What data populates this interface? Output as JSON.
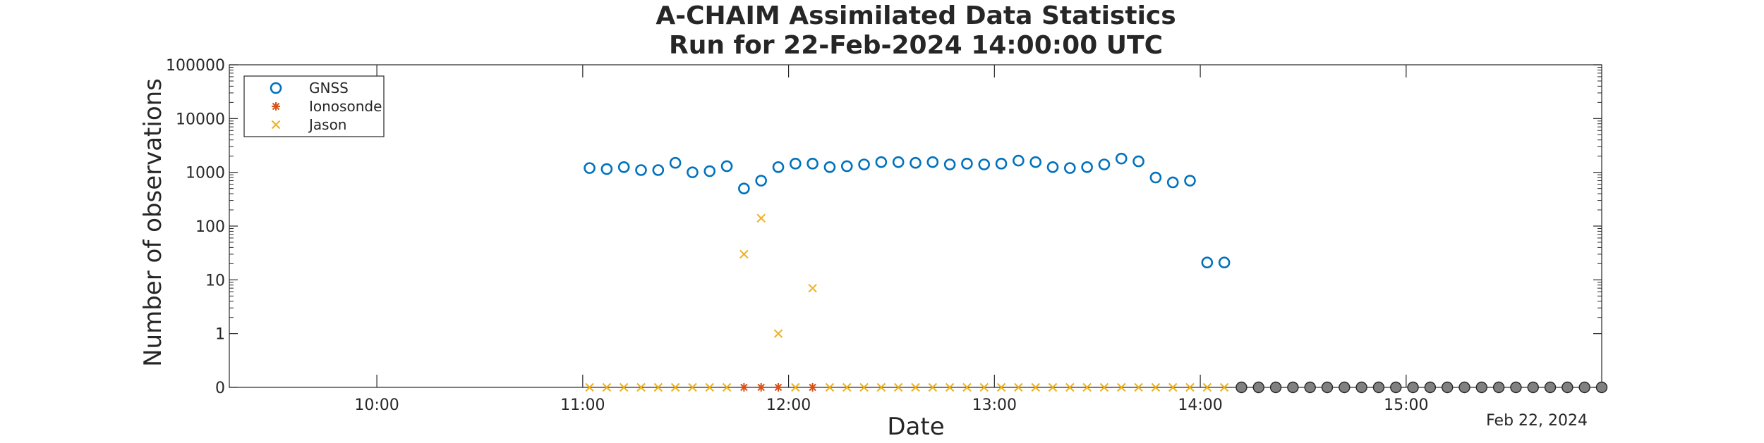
{
  "chart_data": {
    "type": "scatter",
    "title": "A-CHAIM Assimilated Data Statistics",
    "subtitle": "Run for 22-Feb-2024 14:00:00 UTC",
    "xlabel": "Date",
    "ylabel": "Number of observations",
    "date_label": "Feb 22, 2024",
    "x_range": [
      "09:17",
      "15:57"
    ],
    "x_ticks": [
      "10:00",
      "11:00",
      "12:00",
      "13:00",
      "14:00",
      "15:00"
    ],
    "y_scale": "log",
    "y_ticks": [
      "0",
      "1",
      "10",
      "100",
      "1000",
      "10000",
      "100000"
    ],
    "grid": false,
    "legend_position": "top-left",
    "colors": {
      "GNSS": "#0072BD",
      "Ionosonde": "#D95319",
      "Jason": "#EDB120",
      "forecast": "#808080"
    },
    "series": [
      {
        "name": "GNSS",
        "marker": "circle",
        "x": [
          "11:02",
          "11:07",
          "11:12",
          "11:17",
          "11:22",
          "11:27",
          "11:32",
          "11:37",
          "11:42",
          "11:47",
          "11:52",
          "11:57",
          "12:02",
          "12:07",
          "12:12",
          "12:17",
          "12:22",
          "12:27",
          "12:32",
          "12:37",
          "12:42",
          "12:47",
          "12:52",
          "12:57",
          "13:02",
          "13:07",
          "13:12",
          "13:17",
          "13:22",
          "13:27",
          "13:32",
          "13:37",
          "13:42",
          "13:47",
          "13:52",
          "13:57",
          "14:02",
          "14:07"
        ],
        "values": [
          1200,
          1150,
          1250,
          1100,
          1100,
          1500,
          1000,
          1050,
          1300,
          500,
          700,
          1250,
          1450,
          1450,
          1250,
          1300,
          1400,
          1550,
          1550,
          1500,
          1550,
          1400,
          1450,
          1400,
          1450,
          1650,
          1550,
          1250,
          1200,
          1250,
          1400,
          1800,
          1600,
          800,
          650,
          700,
          21,
          21
        ]
      },
      {
        "name": "Ionosonde",
        "marker": "asterisk",
        "x": [
          "11:47",
          "11:52",
          "11:57",
          "12:07"
        ],
        "values": [
          0,
          0,
          0,
          0
        ]
      },
      {
        "name": "Jason",
        "marker": "x",
        "x": [
          "11:02",
          "11:07",
          "11:12",
          "11:17",
          "11:22",
          "11:27",
          "11:32",
          "11:37",
          "11:42",
          "11:47",
          "11:52",
          "11:57",
          "12:02",
          "12:07",
          "12:12",
          "12:17",
          "12:22",
          "12:27",
          "12:32",
          "12:37",
          "12:42",
          "12:47",
          "12:52",
          "12:57",
          "13:02",
          "13:07",
          "13:12",
          "13:17",
          "13:22",
          "13:27",
          "13:32",
          "13:37",
          "13:42",
          "13:47",
          "13:52",
          "13:57",
          "14:02",
          "14:07"
        ],
        "values": [
          0,
          0,
          0,
          0,
          0,
          0,
          0,
          0,
          0,
          30,
          140,
          1,
          0,
          7,
          0,
          0,
          0,
          0,
          0,
          0,
          0,
          0,
          0,
          0,
          0,
          0,
          0,
          0,
          0,
          0,
          0,
          0,
          0,
          0,
          0,
          0,
          0,
          0
        ]
      },
      {
        "marker": "filled-circle",
        "x": [
          "14:12",
          "14:17",
          "14:22",
          "14:27",
          "14:32",
          "14:37",
          "14:42",
          "14:47",
          "14:52",
          "14:57",
          "15:02",
          "15:07",
          "15:12",
          "15:17",
          "15:22",
          "15:27",
          "15:32",
          "15:37",
          "15:42",
          "15:47",
          "15:52",
          "15:57"
        ],
        "values": [
          0,
          0,
          0,
          0,
          0,
          0,
          0,
          0,
          0,
          0,
          0,
          0,
          0,
          0,
          0,
          0,
          0,
          0,
          0,
          0,
          0,
          0
        ]
      }
    ]
  }
}
